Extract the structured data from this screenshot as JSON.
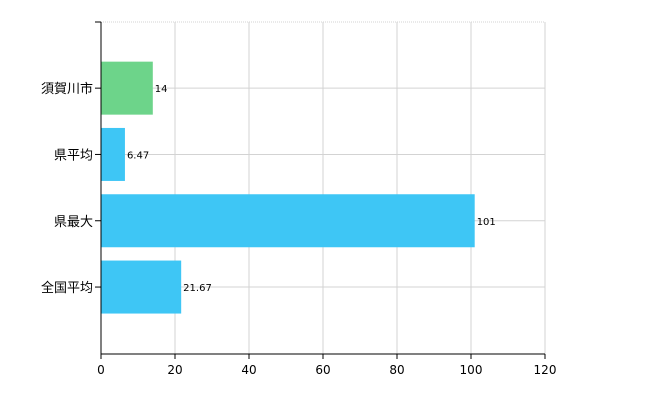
{
  "chart_data": {
    "type": "bar",
    "orientation": "horizontal",
    "categories": [
      "須賀川市",
      "県平均",
      "県最大",
      "全国平均"
    ],
    "values": [
      14,
      6.47,
      101,
      21.67
    ],
    "value_labels": [
      "14",
      "6.47",
      "101",
      "21.67"
    ],
    "bar_colors": [
      "#6dd48a",
      "#3ec6f5",
      "#3ec6f5",
      "#3ec6f5"
    ],
    "title": "",
    "xlabel": "",
    "ylabel": "",
    "xlim": [
      0,
      120
    ],
    "x_ticks": [
      0,
      20,
      40,
      60,
      80,
      100,
      120
    ],
    "x_tick_labels": [
      "0",
      "20",
      "40",
      "60",
      "80",
      "100",
      "120"
    ],
    "grid": true,
    "grid_color": "#d3d3d3",
    "legend": "none"
  }
}
